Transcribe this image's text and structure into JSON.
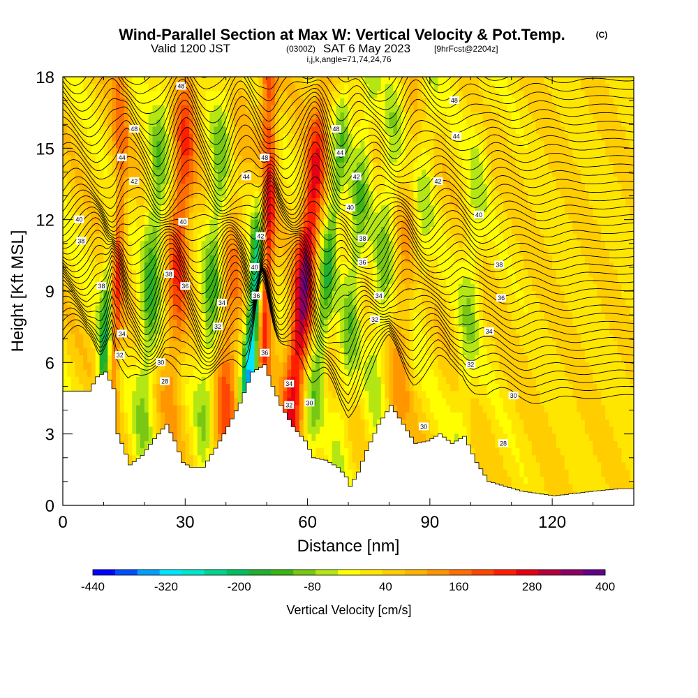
{
  "title": {
    "line1": "Wind-Parallel Section at Max W: Vertical Velocity & Pot.Temp.",
    "line1_mark": "(C)",
    "line2_a": "Valid 1200 JST",
    "line2_b": "(0300Z)",
    "line2_c": "SAT 6 May 2023",
    "line2_d": "[9hrFcst@2204z]",
    "line3": "i,j,k,angle=71,74,24,76"
  },
  "chart_data": {
    "type": "heatmap",
    "xlabel": "Distance [nm]",
    "ylabel": "Height [Kft MSL]",
    "xlim": [
      0,
      140
    ],
    "ylim": [
      0,
      18
    ],
    "x_ticks": [
      0,
      30,
      60,
      90,
      120
    ],
    "y_ticks": [
      0,
      3,
      6,
      9,
      12,
      15,
      18
    ],
    "colorbar": {
      "title": "Vertical Velocity [cm/s]",
      "labels": [
        -440,
        -320,
        -200,
        -80,
        40,
        160,
        280,
        400
      ],
      "min": -440,
      "max": 400,
      "colors": [
        "#0000ff",
        "#0050ff",
        "#00a0ff",
        "#00e6ff",
        "#00e6c8",
        "#00d48c",
        "#00c060",
        "#20b030",
        "#3cb414",
        "#78c814",
        "#b4e614",
        "#ffff00",
        "#ffe600",
        "#ffcd00",
        "#ffb400",
        "#ff9600",
        "#ff6e00",
        "#ff4600",
        "#ff1e00",
        "#e60014",
        "#b4003c",
        "#8c0064",
        "#64008c"
      ]
    },
    "terrain_profile": {
      "x_nm": [
        0,
        6,
        8,
        10,
        12,
        13,
        14,
        16,
        19,
        22,
        25,
        27,
        29,
        31,
        34,
        37,
        40,
        43,
        46,
        49,
        51,
        53,
        56,
        59,
        61,
        64,
        67,
        69,
        70,
        72,
        74,
        77,
        80,
        83,
        86,
        89,
        92,
        95,
        98,
        101,
        104,
        108,
        112,
        116,
        120,
        125,
        130,
        136,
        140
      ],
      "height_kft": [
        4.8,
        4.8,
        5.4,
        5.6,
        4.9,
        3.0,
        2.6,
        1.7,
        2.1,
        2.8,
        3.4,
        2.7,
        1.8,
        1.6,
        1.6,
        2.4,
        3.3,
        4.3,
        5.6,
        5.9,
        5.0,
        4.2,
        3.3,
        2.7,
        2.0,
        1.9,
        1.6,
        1.2,
        0.8,
        1.4,
        2.3,
        3.4,
        4.2,
        3.4,
        2.6,
        2.7,
        3.0,
        2.6,
        2.9,
        1.8,
        1.0,
        0.8,
        0.6,
        0.5,
        0.4,
        0.5,
        0.6,
        0.7,
        0.7
      ]
    },
    "velocity_cores": [
      {
        "x_nm": 13,
        "h_kft": 11.5,
        "w_cms": 300,
        "width_nm": 1.4,
        "lean": 0.2
      },
      {
        "x_nm": 50,
        "h_kft": 13.5,
        "w_cms": 380,
        "width_nm": 1.4,
        "lean": 0.15
      },
      {
        "x_nm": 59,
        "h_kft": 9.0,
        "w_cms": 300,
        "width_nm": 1.8,
        "lean": 0.55
      },
      {
        "x_nm": 29,
        "h_kft": 12.5,
        "w_cms": 180,
        "width_nm": 2.0,
        "lean": 0.3
      },
      {
        "x_nm": 47,
        "h_kft": 8.0,
        "w_cms": -400,
        "width_nm": 1.3,
        "lean": 0.4
      },
      {
        "x_nm": 11,
        "h_kft": 8.0,
        "w_cms": -300,
        "width_nm": 1.2,
        "lean": 0.35
      },
      {
        "x_nm": 22,
        "h_kft": 10.0,
        "w_cms": -150,
        "width_nm": 1.8,
        "lean": 0.35
      },
      {
        "x_nm": 37,
        "h_kft": 10.0,
        "w_cms": -140,
        "width_nm": 1.8,
        "lean": 0.35
      },
      {
        "x_nm": 65,
        "h_kft": 10.0,
        "w_cms": -160,
        "width_nm": 1.5,
        "lean": 0.6
      },
      {
        "x_nm": 72,
        "h_kft": 11.0,
        "w_cms": -120,
        "width_nm": 1.8,
        "lean": 0.45
      },
      {
        "x_nm": 79,
        "h_kft": 11.0,
        "w_cms": -100,
        "width_nm": 1.8,
        "lean": 0.4
      },
      {
        "x_nm": 88,
        "h_kft": 12.0,
        "w_cms": -90,
        "width_nm": 1.8,
        "lean": 0.35
      },
      {
        "x_nm": 100,
        "h_kft": 9.0,
        "w_cms": -80,
        "width_nm": 1.8,
        "lean": 0.35
      },
      {
        "x_nm": 40,
        "h_kft": 5.0,
        "w_cms": 140,
        "width_nm": 2.0,
        "lean": 0.3
      },
      {
        "x_nm": 84,
        "h_kft": 7.0,
        "w_cms": 90,
        "width_nm": 2.5,
        "lean": 0.3
      }
    ],
    "contour_labels": [
      {
        "text": "48",
        "x_nm": 29,
        "h_kft": 17.6
      },
      {
        "text": "48",
        "x_nm": 17.5,
        "h_kft": 15.8
      },
      {
        "text": "44",
        "x_nm": 14.5,
        "h_kft": 14.6
      },
      {
        "text": "42",
        "x_nm": 17.5,
        "h_kft": 13.6
      },
      {
        "text": "40",
        "x_nm": 4,
        "h_kft": 12.0
      },
      {
        "text": "38",
        "x_nm": 4.5,
        "h_kft": 11.1
      },
      {
        "text": "38",
        "x_nm": 9.5,
        "h_kft": 9.2
      },
      {
        "text": "34",
        "x_nm": 14.5,
        "h_kft": 7.2
      },
      {
        "text": "32",
        "x_nm": 14,
        "h_kft": 6.3
      },
      {
        "text": "40",
        "x_nm": 29.5,
        "h_kft": 11.9
      },
      {
        "text": "38",
        "x_nm": 26,
        "h_kft": 9.7
      },
      {
        "text": "36",
        "x_nm": 30,
        "h_kft": 9.2
      },
      {
        "text": "34",
        "x_nm": 39,
        "h_kft": 8.5
      },
      {
        "text": "32",
        "x_nm": 38,
        "h_kft": 7.5
      },
      {
        "text": "30",
        "x_nm": 24,
        "h_kft": 6.0
      },
      {
        "text": "28",
        "x_nm": 25,
        "h_kft": 5.2
      },
      {
        "text": "48",
        "x_nm": 49.5,
        "h_kft": 14.6
      },
      {
        "text": "44",
        "x_nm": 45,
        "h_kft": 13.8
      },
      {
        "text": "42",
        "x_nm": 48.5,
        "h_kft": 11.3
      },
      {
        "text": "40",
        "x_nm": 47,
        "h_kft": 10.0
      },
      {
        "text": "36",
        "x_nm": 47.5,
        "h_kft": 8.8
      },
      {
        "text": "36",
        "x_nm": 49.5,
        "h_kft": 6.4
      },
      {
        "text": "34",
        "x_nm": 55.5,
        "h_kft": 5.1
      },
      {
        "text": "32",
        "x_nm": 55.5,
        "h_kft": 4.2
      },
      {
        "text": "30",
        "x_nm": 60.5,
        "h_kft": 4.3
      },
      {
        "text": "48",
        "x_nm": 67,
        "h_kft": 15.8
      },
      {
        "text": "44",
        "x_nm": 68,
        "h_kft": 14.8
      },
      {
        "text": "42",
        "x_nm": 72,
        "h_kft": 13.8
      },
      {
        "text": "40",
        "x_nm": 70.5,
        "h_kft": 12.5
      },
      {
        "text": "38",
        "x_nm": 73.5,
        "h_kft": 11.2
      },
      {
        "text": "36",
        "x_nm": 73.5,
        "h_kft": 10.2
      },
      {
        "text": "34",
        "x_nm": 77.5,
        "h_kft": 8.8
      },
      {
        "text": "32",
        "x_nm": 76.5,
        "h_kft": 7.8
      },
      {
        "text": "48",
        "x_nm": 96,
        "h_kft": 17.0
      },
      {
        "text": "44",
        "x_nm": 96.5,
        "h_kft": 15.5
      },
      {
        "text": "42",
        "x_nm": 92,
        "h_kft": 13.6
      },
      {
        "text": "40",
        "x_nm": 102,
        "h_kft": 12.2
      },
      {
        "text": "38",
        "x_nm": 107,
        "h_kft": 10.1
      },
      {
        "text": "36",
        "x_nm": 107.5,
        "h_kft": 8.7
      },
      {
        "text": "34",
        "x_nm": 104.5,
        "h_kft": 7.3
      },
      {
        "text": "32",
        "x_nm": 100,
        "h_kft": 5.9
      },
      {
        "text": "30",
        "x_nm": 110.5,
        "h_kft": 4.6
      },
      {
        "text": "30",
        "x_nm": 88.5,
        "h_kft": 3.3
      },
      {
        "text": "28",
        "x_nm": 108,
        "h_kft": 2.6
      }
    ]
  }
}
